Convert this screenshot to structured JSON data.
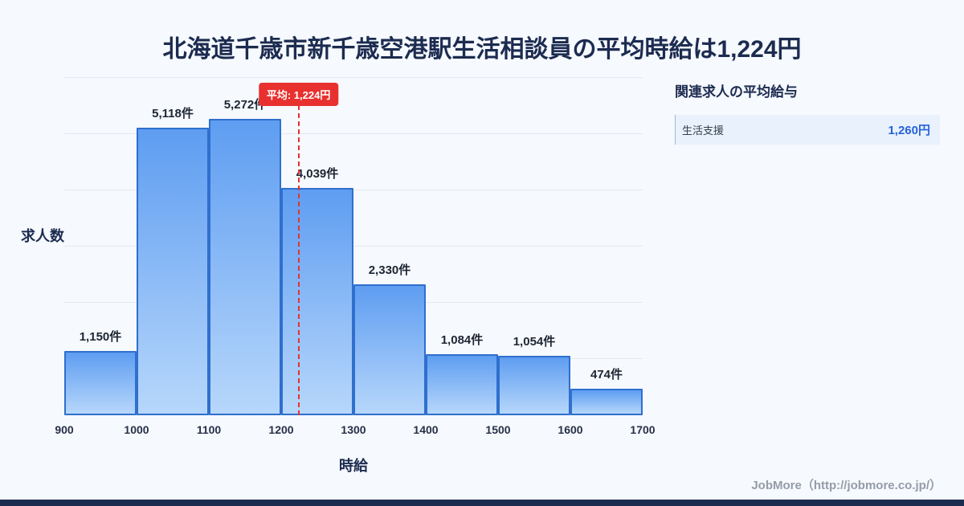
{
  "page": {
    "title": "北海道千歳市新千歳空港駅生活相談員の平均時給は1,224円",
    "footer": "JobMore（http://jobmore.co.jp/）"
  },
  "theme": {
    "bg": "#f6f9fd",
    "title-color": "#1c2b50",
    "bar-top": "#5e9df1",
    "bar-bottom": "#b7d7fb",
    "bar-border": "#2f6fce",
    "grid-color": "#e4eaf1",
    "avg-red": "#e8312f",
    "value-blue": "#2563d9",
    "row-bg": "#e9f1fc",
    "footer-color": "#949ca8",
    "bottom-strip": "#1c2b50"
  },
  "chart_data": {
    "type": "bar",
    "title": "北海道千歳市新千歳空港駅生活相談員の平均時給は1,224円",
    "xlabel": "時給",
    "ylabel": "求人数",
    "x_min": 900,
    "x_max": 1700,
    "y_min": 0,
    "y_max": 6000,
    "grid_step": 1000,
    "grid": "horizontal",
    "legend": "none",
    "x_ticks": [
      900,
      1000,
      1100,
      1200,
      1300,
      1400,
      1500,
      1600,
      1700
    ],
    "categories": [
      "900-1000",
      "1000-1100",
      "1100-1200",
      "1200-1300",
      "1300-1400",
      "1400-1500",
      "1500-1600",
      "1600-1700"
    ],
    "values": [
      1150,
      5118,
      5272,
      4039,
      2330,
      1084,
      1054,
      474
    ],
    "bar_labels": [
      "1,150件",
      "5,118件",
      "5,272件",
      "4,039件",
      "2,330件",
      "1,084件",
      "1,054件",
      "474件"
    ],
    "average": 1224,
    "average_label": "平均: 1,224円"
  },
  "side_panel": {
    "title": "関連求人の平均給与",
    "rows": [
      {
        "label": "生活支援",
        "value": "1,260円"
      }
    ]
  }
}
